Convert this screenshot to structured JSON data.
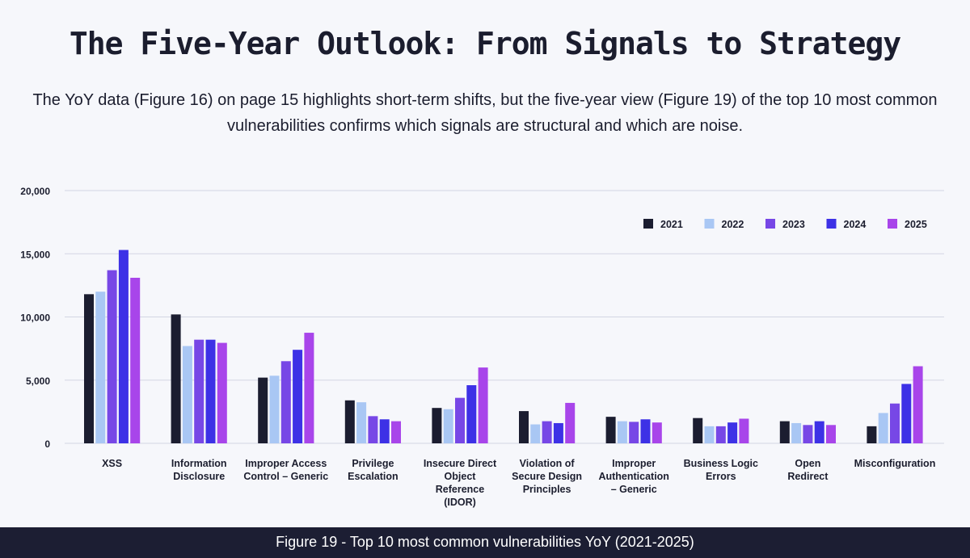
{
  "page": {
    "title": "The Five-Year Outlook: From Signals to Strategy",
    "subtitle": "The YoY data (Figure 16) on page 15 highlights short-term shifts, but the five-year view (Figure 19) of the top 10 most common vulnerabilities confirms which signals are structural and which are noise.",
    "caption": "Figure 19 - Top 10 most common vulnerabilities YoY (2021-2025)"
  },
  "chart_data": {
    "type": "bar",
    "title": "",
    "xlabel": "",
    "ylabel": "",
    "ylim": [
      0,
      20000
    ],
    "yticks": [
      0,
      5000,
      10000,
      15000,
      20000
    ],
    "ytick_labels": [
      "0",
      "5,000",
      "10,000",
      "15,000",
      "20,000"
    ],
    "grid": true,
    "legend_position": "top-right",
    "categories": [
      [
        "XSS"
      ],
      [
        "Information",
        "Disclosure"
      ],
      [
        "Improper Access",
        "Control – Generic"
      ],
      [
        "Privilege",
        "Escalation"
      ],
      [
        "Insecure Direct",
        "Object",
        "Reference",
        "(IDOR)"
      ],
      [
        "Violation of",
        "Secure Design",
        "Principles"
      ],
      [
        "Improper",
        "Authentication",
        "– Generic"
      ],
      [
        "Business Logic",
        "Errors"
      ],
      [
        "Open",
        "Redirect"
      ],
      [
        "Misconfiguration"
      ]
    ],
    "series": [
      {
        "name": "2021",
        "color": "#1b1d30",
        "values": [
          11800,
          10200,
          5200,
          3400,
          2800,
          2550,
          2100,
          2000,
          1750,
          1350
        ]
      },
      {
        "name": "2022",
        "color": "#a9c7f4",
        "values": [
          12000,
          7700,
          5350,
          3250,
          2700,
          1500,
          1750,
          1350,
          1600,
          2400
        ]
      },
      {
        "name": "2023",
        "color": "#7747e6",
        "values": [
          13700,
          8200,
          6500,
          2150,
          3600,
          1750,
          1700,
          1350,
          1450,
          3150
        ]
      },
      {
        "name": "2024",
        "color": "#3d31e6",
        "values": [
          15300,
          8200,
          7400,
          1900,
          4600,
          1600,
          1900,
          1650,
          1750,
          4700
        ]
      },
      {
        "name": "2025",
        "color": "#a845ea",
        "values": [
          13100,
          7950,
          8750,
          1750,
          6000,
          3200,
          1650,
          1950,
          1450,
          6100
        ]
      }
    ]
  }
}
